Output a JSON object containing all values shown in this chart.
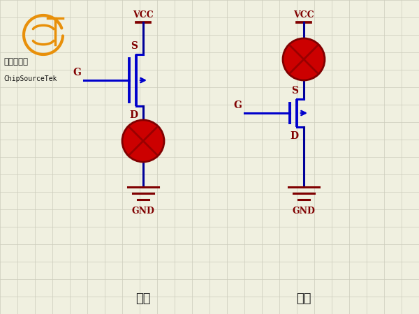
{
  "bg_color": "#f0f0e0",
  "grid_color": "#ccccbb",
  "wire_color": "#000099",
  "vcc_color": "#800000",
  "gnd_color": "#800000",
  "label_color": "#800000",
  "bulb_fill": "#cc0000",
  "bulb_edge": "#800000",
  "mos_color": "#0000cc",
  "logo_text1": "石源特科技",
  "logo_text2": "ChipSourceTek",
  "left_label": "上管",
  "right_label": "下管",
  "logo_orange": "#e8900a",
  "figsize": [
    6.0,
    4.5
  ],
  "dpi": 100,
  "xlim": [
    0,
    6.0
  ],
  "ylim": [
    0,
    4.5
  ],
  "grid_step": 0.25
}
